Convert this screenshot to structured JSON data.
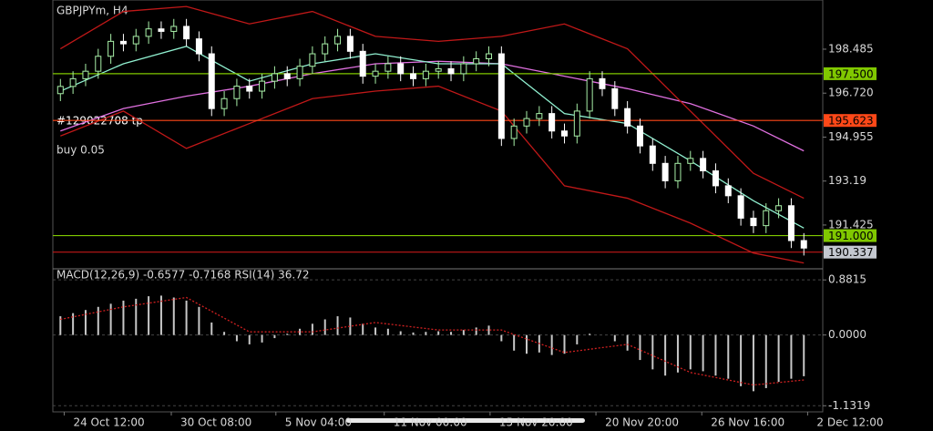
{
  "chart_data": [
    {
      "type": "candlestick",
      "title": "GBPJPYm, H4",
      "annotations": [
        "#129022708 tp",
        "buy 0.05"
      ],
      "up_color": "#a8f0a8",
      "down_color": "#ffffff",
      "open": [
        196.7,
        196.99,
        197.3,
        197.6,
        198.2,
        198.8,
        198.7,
        199.0,
        199.3,
        199.2,
        199.4,
        198.9,
        198.3,
        196.1,
        196.5,
        197.0,
        196.8,
        197.2,
        197.5,
        197.3,
        197.8,
        198.3,
        198.7,
        199.0,
        198.4,
        197.4,
        197.6,
        197.9,
        197.5,
        197.3,
        197.6,
        197.7,
        197.5,
        197.9,
        198.1,
        198.3,
        194.9,
        195.4,
        195.7,
        195.9,
        195.2,
        195.0,
        196.0,
        197.3,
        196.9,
        196.1,
        195.4,
        194.6,
        193.9,
        193.2,
        193.9,
        194.1,
        193.6,
        193.0,
        192.6,
        191.7,
        191.4,
        192.0,
        192.2,
        190.8
      ],
      "high": [
        197.29,
        197.6,
        197.9,
        198.5,
        199.1,
        199.1,
        199.3,
        199.6,
        199.6,
        199.7,
        199.7,
        199.2,
        198.6,
        196.8,
        197.3,
        197.3,
        197.5,
        197.8,
        197.8,
        198.1,
        198.6,
        199.0,
        199.3,
        199.3,
        198.7,
        197.9,
        198.2,
        198.2,
        197.8,
        197.9,
        198.0,
        198.0,
        198.2,
        198.4,
        198.6,
        198.6,
        195.7,
        196.0,
        196.2,
        196.2,
        195.5,
        196.3,
        197.6,
        197.6,
        197.2,
        196.4,
        195.7,
        194.9,
        194.2,
        194.2,
        194.4,
        194.4,
        193.9,
        193.3,
        192.9,
        192.0,
        192.3,
        192.5,
        192.5,
        191.1
      ],
      "low": [
        196.4,
        196.69,
        197.0,
        197.3,
        197.9,
        198.4,
        198.4,
        198.7,
        198.9,
        198.9,
        198.6,
        198.0,
        195.8,
        195.8,
        196.2,
        196.5,
        196.5,
        196.9,
        197.0,
        197.0,
        197.5,
        198.0,
        198.4,
        198.1,
        197.1,
        197.1,
        197.3,
        197.2,
        197.0,
        197.0,
        197.3,
        197.2,
        197.2,
        197.6,
        197.8,
        194.6,
        194.6,
        195.1,
        195.4,
        194.9,
        194.7,
        194.7,
        195.7,
        196.6,
        195.8,
        195.1,
        194.3,
        193.6,
        192.9,
        192.9,
        193.6,
        193.3,
        192.7,
        192.3,
        191.4,
        191.1,
        191.1,
        191.7,
        190.5,
        190.2
      ],
      "close": [
        196.99,
        197.3,
        197.6,
        198.2,
        198.8,
        198.7,
        199.0,
        199.3,
        199.2,
        199.4,
        198.9,
        198.3,
        196.1,
        196.5,
        197.0,
        196.8,
        197.2,
        197.5,
        197.3,
        197.8,
        198.3,
        198.7,
        199.0,
        198.4,
        197.4,
        197.6,
        197.9,
        197.5,
        197.3,
        197.6,
        197.7,
        197.5,
        197.9,
        198.1,
        198.3,
        194.9,
        195.4,
        195.7,
        195.9,
        195.2,
        195.0,
        196.0,
        197.3,
        196.9,
        196.1,
        195.4,
        194.6,
        193.9,
        193.2,
        193.9,
        194.1,
        193.6,
        193.0,
        192.6,
        191.7,
        191.4,
        192.0,
        192.2,
        190.8,
        190.5
      ],
      "overlays": [
        {
          "color": "#e070e0",
          "x": [
            0,
            5,
            10,
            15,
            20,
            25,
            30,
            35,
            40,
            45,
            50,
            55,
            59
          ],
          "values": [
            195.2,
            196.1,
            196.6,
            197.0,
            197.5,
            197.9,
            198.0,
            197.9,
            197.4,
            196.9,
            196.3,
            195.4,
            194.4
          ]
        },
        {
          "color": "#90f0d0",
          "x": [
            0,
            5,
            10,
            15,
            20,
            25,
            30,
            35,
            40,
            45,
            50,
            55,
            59
          ],
          "values": [
            196.8,
            197.9,
            198.6,
            197.2,
            197.9,
            198.3,
            197.9,
            197.9,
            195.9,
            195.5,
            194.0,
            192.4,
            191.3
          ]
        },
        {
          "color": "#c01818",
          "x": [
            0,
            5,
            10,
            15,
            20,
            25,
            30,
            35,
            40,
            45,
            50,
            55,
            59
          ],
          "values": [
            198.5,
            200.0,
            200.2,
            199.5,
            200.0,
            199.0,
            198.8,
            199.0,
            199.5,
            198.5,
            196.0,
            193.5,
            192.5
          ]
        },
        {
          "color": "#c01818",
          "x": [
            0,
            5,
            10,
            15,
            20,
            25,
            30,
            35,
            40,
            45,
            50,
            55,
            59
          ],
          "values": [
            195.0,
            196.0,
            194.5,
            195.5,
            196.5,
            196.8,
            197.0,
            196.0,
            193.0,
            192.5,
            191.5,
            190.3,
            189.9
          ]
        }
      ],
      "levels": [
        {
          "value": 197.5,
          "label": "197.500",
          "color": "#80c800",
          "label_color": "#80c800"
        },
        {
          "value": 195.623,
          "label": "195.623",
          "color": "#ff4818",
          "label_color": "#ff4818"
        },
        {
          "value": 191.0,
          "label": "191.000",
          "color": "#80c800",
          "label_color": "#80c800"
        },
        {
          "value": 190.337,
          "label": "190.337",
          "color": "#c01818",
          "label_color": "#c4c8d0"
        }
      ],
      "ylim": [
        189.74,
        200.46
      ],
      "yticks": [
        198.485,
        {
          "value": 196.72,
          "label": "196.720"
        },
        194.955,
        193.19,
        191.425
      ],
      "xlim": [
        -0.6,
        60.5
      ],
      "xticks": [
        {
          "value": 0.3,
          "label": "24 Oct 12:00"
        },
        {
          "value": 8.8,
          "label": "30 Oct 08:00"
        },
        {
          "value": 17.1,
          "label": "5 Nov 04:00"
        },
        {
          "value": 25.7,
          "label": "11 Nov 00:00"
        },
        {
          "value": 34.1,
          "label": "15 Nov 20:00"
        },
        {
          "value": 42.5,
          "label": "20 Nov 20:00"
        },
        {
          "value": 50.9,
          "label": "26 Nov 16:00"
        },
        {
          "value": 59.3,
          "label": "2 Dec 12:00"
        }
      ]
    },
    {
      "type": "bar",
      "title": "MACD(12,26,9) -0.6577 -0.7168 RSI(14) 36.72",
      "color": "#c8c8c8",
      "values": [
        0.3,
        0.35,
        0.4,
        0.45,
        0.5,
        0.55,
        0.58,
        0.62,
        0.63,
        0.6,
        0.55,
        0.45,
        0.2,
        0.05,
        -0.1,
        -0.15,
        -0.12,
        -0.05,
        0.02,
        0.1,
        0.18,
        0.25,
        0.3,
        0.28,
        0.18,
        0.12,
        0.1,
        0.06,
        0.04,
        0.05,
        0.06,
        0.05,
        0.08,
        0.12,
        0.15,
        -0.1,
        -0.25,
        -0.3,
        -0.28,
        -0.32,
        -0.3,
        -0.15,
        0.02,
        0.0,
        -0.1,
        -0.25,
        -0.4,
        -0.55,
        -0.65,
        -0.6,
        -0.55,
        -0.58,
        -0.65,
        -0.7,
        -0.82,
        -0.9,
        -0.85,
        -0.75,
        -0.7,
        -0.66
      ],
      "signal": {
        "color": "#d02020",
        "x": [
          0,
          5,
          10,
          15,
          20,
          25,
          30,
          35,
          40,
          45,
          50,
          55,
          59
        ],
        "values": [
          0.25,
          0.45,
          0.6,
          0.05,
          0.05,
          0.2,
          0.08,
          0.08,
          -0.28,
          -0.15,
          -0.6,
          -0.8,
          -0.72
        ]
      },
      "ylim": [
        -1.23,
        1.03
      ],
      "yticks": [
        0.8815,
        {
          "value": 0,
          "label": "0.0000"
        },
        -1.1319
      ]
    }
  ]
}
